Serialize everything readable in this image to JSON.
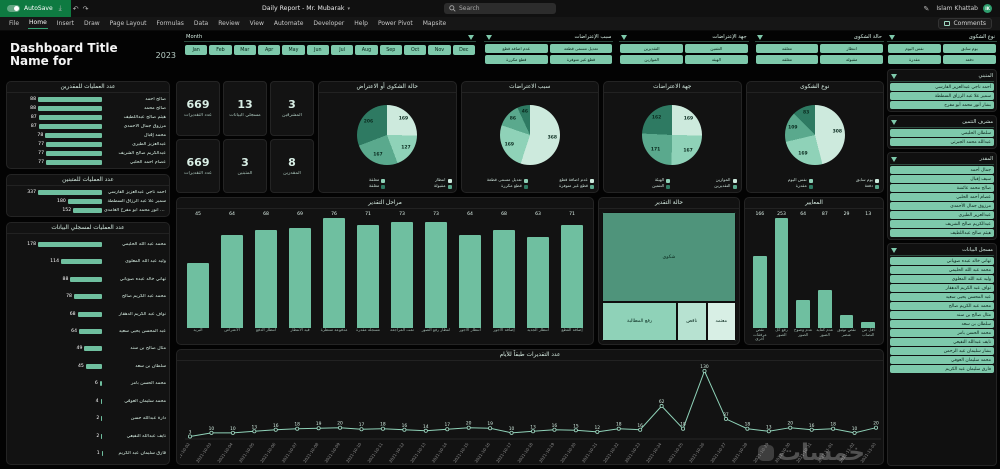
{
  "titlebar": {
    "autosave_label": "AutoSave",
    "autosave_state": "On",
    "filename": "Daily Report - Mr. Mubarak",
    "search_placeholder": "Search",
    "user": "Islam Khattab"
  },
  "ribbon": {
    "tabs": [
      "File",
      "Home",
      "Insert",
      "Draw",
      "Page Layout",
      "Formulas",
      "Data",
      "Review",
      "View",
      "Automate",
      "Developer",
      "Help",
      "Power Pivot",
      "Mapsite"
    ],
    "active_tab": "Home",
    "comments_label": "Comments"
  },
  "dashboard": {
    "title_main": "Dashboard Title Name for",
    "title_year": "2023",
    "watermark": "خمسات",
    "palette": {
      "accent": "#7ec9ab",
      "bar": "#6fbfa0",
      "pie": [
        "#cdeadd",
        "#8fd2b8",
        "#5aa98d",
        "#2e7a62"
      ],
      "treemap": [
        "#4f947b",
        "#8fd2b8",
        "#b7e2d1",
        "#d8efe5"
      ]
    },
    "month_slicer": {
      "label": "Month",
      "items": [
        "Jan",
        "Feb",
        "Mar",
        "Apr",
        "May",
        "Jun",
        "Jul",
        "Aug",
        "Sep",
        "Oct",
        "Nov",
        "Dec"
      ]
    },
    "top_slicers": [
      {
        "title": "سبب الإعتراضات",
        "items": [
          "تعديل مسمى قطعة",
          "عدم اضافة قطع",
          "قطع غير متوفرة",
          "قطع مكررة"
        ]
      },
      {
        "title": "جهة الإعتراضات",
        "items": [
          "التثمين",
          "التقديرين",
          "الهيئة",
          "الموازين"
        ]
      },
      {
        "title": "حالة الشكوى",
        "items": [
          "انتظار",
          "معلقة",
          "مقبولة",
          "مغلقة"
        ]
      }
    ],
    "side_slicer_top": {
      "title": "نوع الشكوى",
      "items": [
        "يوم سابق",
        "نفس اليوم",
        "دفعة",
        "مقدرة"
      ]
    },
    "kpis": [
      {
        "value": "669",
        "label": "عدد التقديرات"
      },
      {
        "value": "13",
        "label": "مسجلي البيانات"
      },
      {
        "value": "3",
        "label": "المشرفين"
      },
      {
        "value": "669",
        "label": "عدد التقديرات"
      },
      {
        "value": "3",
        "label": "المتبنين"
      },
      {
        "value": "8",
        "label": "المقدرين"
      }
    ],
    "pies": [
      {
        "title": "حالة الشكوى أو الاعتراض",
        "slices": [
          {
            "label": "انتظار",
            "value": 169
          },
          {
            "label": "معلقة",
            "value": 127
          },
          {
            "label": "مقبولة",
            "value": 167
          },
          {
            "label": "مغلقة",
            "value": 206
          }
        ]
      },
      {
        "title": "سبب الاعتراضات",
        "slices": [
          {
            "label": "عدم اضافة قطع",
            "value": 368
          },
          {
            "label": "تعديل مسمى قطعة",
            "value": 169
          },
          {
            "label": "قطع غير متوفرة",
            "value": 86
          },
          {
            "label": "قطع مكررة",
            "value": 46
          }
        ]
      },
      {
        "title": "جهة الاعتراضات",
        "slices": [
          {
            "label": "الموازين",
            "value": 169
          },
          {
            "label": "الهيئة",
            "value": 167
          },
          {
            "label": "التقديرين",
            "value": 171
          },
          {
            "label": "التثمين",
            "value": 162
          }
        ]
      },
      {
        "title": "نوع الشكوى",
        "slices": [
          {
            "label": "يوم سابق",
            "value": 308
          },
          {
            "label": "نفس اليوم",
            "value": 169
          },
          {
            "label": "دفعة",
            "value": 109
          },
          {
            "label": "مقدرة",
            "value": 83
          }
        ]
      }
    ],
    "left_lists": [
      {
        "title": "عدد العمليات للمقدرين",
        "items": [
          [
            "صالح أحمد",
            88
          ],
          [
            "صالح محمد",
            88
          ],
          [
            "هيثم صالح عبداللطيف",
            87
          ],
          [
            "مرزوق جمال الأحمدي",
            87
          ],
          [
            "محمد إقبال",
            78
          ],
          [
            "عبدالعزيز الطيري",
            77
          ],
          [
            "عبدالكريم صالح الشريف",
            77
          ],
          [
            "عصام أحمد الحلبي",
            77
          ]
        ]
      },
      {
        "title": "عدد العمليات للمتبنين",
        "items": [
          [
            "أحمد ناجي عبدالعزيز الفارسي",
            337
          ],
          [
            "سمير علا عبد الرزاق السططة",
            180
          ],
          [
            "بشار أنور محمد أبو مفرح الغامدي",
            152
          ]
        ]
      },
      {
        "title": "عدد العمليات لمسجلي البيانات",
        "items": [
          [
            "محمد عبد الله الحليمي",
            178
          ],
          [
            "وليد عبد الله المعلوي",
            114
          ],
          [
            "تهاني خالد عبده صوياني",
            88
          ],
          [
            "محمد عبد الكريم صالح",
            78
          ],
          [
            "نواف عبد الكريم الدهقار",
            68
          ],
          [
            "عبد المحسن يحيى سعيد",
            64
          ],
          [
            "مثال صالح بن سند",
            49
          ],
          [
            "سلطان بن سعد",
            45
          ],
          [
            "محمد الحسن بامر",
            6
          ],
          [
            "محمد سليمان العوفي",
            4
          ],
          [
            "دارة عبدالله حسن",
            2
          ],
          [
            "نايف عبدالله النفيعي",
            2
          ],
          [
            "فارق سليمان عبد الكريم",
            1
          ]
        ]
      }
    ],
    "stage_chart": {
      "title": "مراحل التقدير",
      "categories": [
        "البريد",
        "الاعتراض",
        "انتظار الدفع",
        "قيد الانتظار",
        "مدفوعة منتظرة",
        "مسجلة مقدرة",
        "تمت المراجعة",
        "انتظار رفع الصور",
        "انتظار الأجور",
        "إضافة الأجور",
        "انتظار الجديد",
        "إضافة القطع"
      ],
      "values": [
        45,
        64,
        68,
        69,
        76,
        71,
        73,
        73,
        64,
        68,
        63,
        71
      ]
    },
    "treemap": {
      "title": "حالة التقدير",
      "items": [
        {
          "label": "شكوى"
        },
        {
          "label": "رفع المطالبة"
        },
        {
          "label": "ناقص"
        },
        {
          "label": "معتمد"
        }
      ]
    },
    "criteria_chart": {
      "title": "المعايير",
      "categories": [
        "نقص مرفقات أخرى",
        "رفع كل الصور",
        "عدم وضوح الصور",
        "عدم كفاية الصور",
        "نقص توثيق عنصر",
        "أقل من النصاب"
      ],
      "values": [
        166,
        253,
        64,
        87,
        29,
        13
      ]
    },
    "line_chart": {
      "title": "عدد التقديرات طبقاً للأيام",
      "dates": [
        "2021-10-02",
        "2021-10-03",
        "2021-10-04",
        "2021-10-05",
        "2021-10-06",
        "2021-10-07",
        "2021-10-08",
        "2021-10-09",
        "2021-10-10",
        "2021-10-11",
        "2021-10-12",
        "2021-10-13",
        "2021-10-14",
        "2021-10-15",
        "2021-10-16",
        "2021-10-17",
        "2021-10-18",
        "2021-10-19",
        "2021-10-20",
        "2021-10-21",
        "2021-10-22",
        "2021-10-23",
        "2021-10-24",
        "2021-10-25",
        "2021-10-26",
        "2021-10-27",
        "2021-10-28",
        "2021-10-29",
        "2021-10-30",
        "2021-10-31",
        "2021-11-01",
        "2021-11-02",
        "2021-11-03"
      ],
      "values": [
        3,
        10,
        10,
        13,
        16,
        18,
        19,
        20,
        17,
        18,
        16,
        14,
        17,
        20,
        19,
        10,
        13,
        16,
        15,
        12,
        18,
        16,
        62,
        18,
        130,
        37,
        18,
        13,
        20,
        16,
        18,
        10,
        20
      ]
    },
    "side_panels": [
      {
        "title": "المتبني",
        "items": [
          "أحمد ناجي عبدالعزيز الفارسي",
          "سمير علا عبد الرزاق السططة",
          "بشار أنور محمد أبو مفرح"
        ]
      },
      {
        "title": "مشرف التثمين",
        "items": [
          "سلطان الحليمي",
          "عبدالله محمد الجبرتي"
        ]
      },
      {
        "title": "المقدر",
        "items": [
          "جمال أحمد",
          "سيف إقبال",
          "صالح محمد عائشة",
          "عصام أحمد الحلبي",
          "مرزوق جمال الأحمدي",
          "عبدالعزيز الطيري",
          "عبدالكريم صالح الشريف",
          "هيثم صالح عبداللطيف"
        ]
      },
      {
        "title": "مسجل البيانات",
        "items": [
          "تهاني خالد عبده صوياني",
          "محمد عبد الله الحليمي",
          "وليد عبد الله المعلوي",
          "نواف عبد الكريم الدهقار",
          "عبد المحسن يحيى سعيد",
          "محمد عبد الكريم صالح",
          "مثال صالح بن سند",
          "سلطان بن سعد",
          "محمد الحسن بامر",
          "نايف عبدالله النفيعي",
          "بشار سليمان عبد الرحمن",
          "محمد سليمان العوفي",
          "فارق سليمان عبد الكريم"
        ]
      }
    ]
  }
}
